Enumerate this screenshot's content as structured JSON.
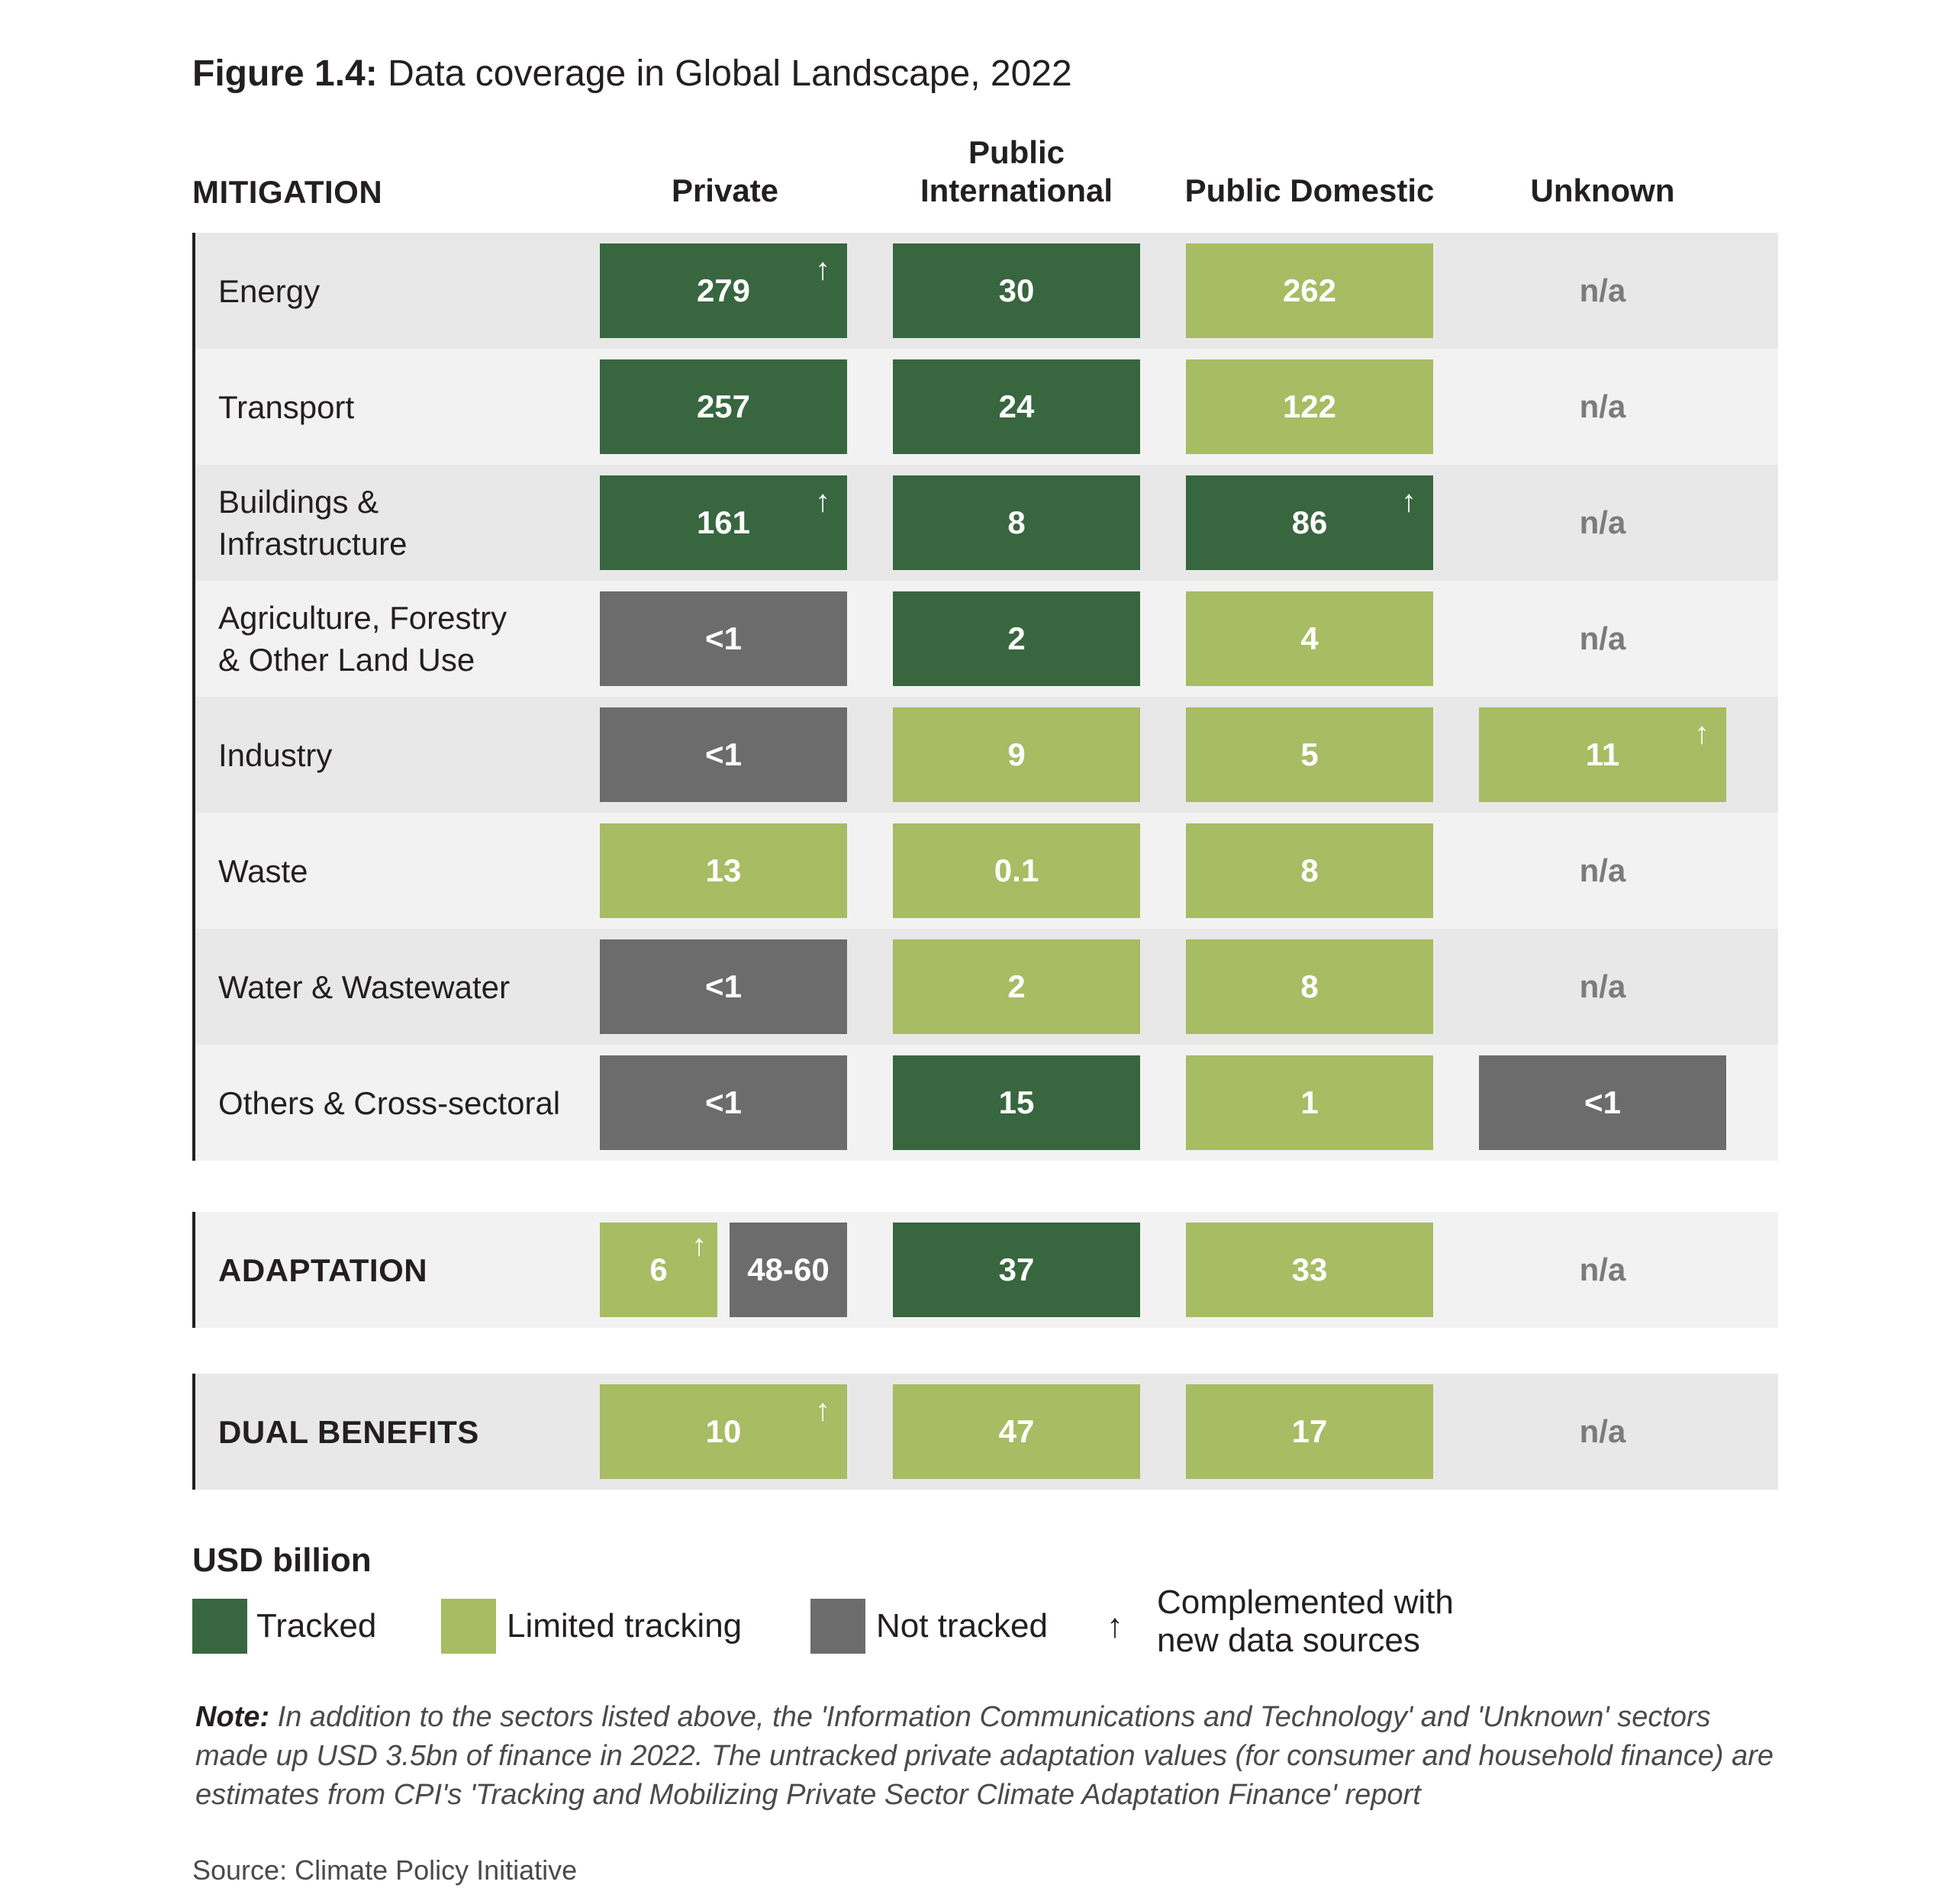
{
  "title": {
    "prefix": "Figure 1.4:",
    "text": "Data coverage in Global Landscape, 2022"
  },
  "columns": [
    "Private",
    "Public\nInternational",
    "Public Domestic",
    "Unknown"
  ],
  "colors": {
    "tracked": "#38663f",
    "limited_tracking": "#a7bc63",
    "not_tracked": "#6c6c6c",
    "na_text": "#7b7b7b"
  },
  "chart_data": {
    "type": "table",
    "title": "Data coverage in Global Landscape, 2022",
    "unit": "USD billion",
    "columns": [
      "Private",
      "Public International",
      "Public Domestic",
      "Unknown"
    ],
    "sections": [
      {
        "name": "MITIGATION",
        "rows": [
          {
            "sector": "Energy",
            "cells": [
              {
                "value": "279",
                "status": "tracked",
                "new_data": true
              },
              {
                "value": "30",
                "status": "tracked",
                "new_data": false
              },
              {
                "value": "262",
                "status": "limited",
                "new_data": false
              },
              {
                "value": "n/a",
                "status": "na",
                "new_data": false
              }
            ]
          },
          {
            "sector": "Transport",
            "cells": [
              {
                "value": "257",
                "status": "tracked",
                "new_data": false
              },
              {
                "value": "24",
                "status": "tracked",
                "new_data": false
              },
              {
                "value": "122",
                "status": "limited",
                "new_data": false
              },
              {
                "value": "n/a",
                "status": "na",
                "new_data": false
              }
            ]
          },
          {
            "sector": "Buildings &\nInfrastructure",
            "cells": [
              {
                "value": "161",
                "status": "tracked",
                "new_data": true
              },
              {
                "value": "8",
                "status": "tracked",
                "new_data": false
              },
              {
                "value": "86",
                "status": "tracked",
                "new_data": true
              },
              {
                "value": "n/a",
                "status": "na",
                "new_data": false
              }
            ]
          },
          {
            "sector": "Agriculture, Forestry\n& Other Land Use",
            "cells": [
              {
                "value": "<1",
                "status": "nottracked",
                "new_data": false
              },
              {
                "value": "2",
                "status": "tracked",
                "new_data": false
              },
              {
                "value": "4",
                "status": "limited",
                "new_data": false
              },
              {
                "value": "n/a",
                "status": "na",
                "new_data": false
              }
            ]
          },
          {
            "sector": "Industry",
            "cells": [
              {
                "value": "<1",
                "status": "nottracked",
                "new_data": false
              },
              {
                "value": "9",
                "status": "limited",
                "new_data": false
              },
              {
                "value": "5",
                "status": "limited",
                "new_data": false
              },
              {
                "value": "11",
                "status": "limited",
                "new_data": true
              }
            ]
          },
          {
            "sector": "Waste",
            "cells": [
              {
                "value": "13",
                "status": "limited",
                "new_data": false
              },
              {
                "value": "0.1",
                "status": "limited",
                "new_data": false
              },
              {
                "value": "8",
                "status": "limited",
                "new_data": false
              },
              {
                "value": "n/a",
                "status": "na",
                "new_data": false
              }
            ]
          },
          {
            "sector": "Water & Wastewater",
            "cells": [
              {
                "value": "<1",
                "status": "nottracked",
                "new_data": false
              },
              {
                "value": "2",
                "status": "limited",
                "new_data": false
              },
              {
                "value": "8",
                "status": "limited",
                "new_data": false
              },
              {
                "value": "n/a",
                "status": "na",
                "new_data": false
              }
            ]
          },
          {
            "sector": "Others & Cross-sectoral",
            "cells": [
              {
                "value": "<1",
                "status": "nottracked",
                "new_data": false
              },
              {
                "value": "15",
                "status": "tracked",
                "new_data": false
              },
              {
                "value": "1",
                "status": "limited",
                "new_data": false
              },
              {
                "value": "<1",
                "status": "nottracked",
                "new_data": false
              }
            ]
          }
        ]
      },
      {
        "name": "ADAPTATION",
        "rows": [
          {
            "sector": "ADAPTATION",
            "cells": [
              {
                "parts": [
                  {
                    "value": "6",
                    "status": "limited",
                    "new_data": true
                  },
                  {
                    "value": "48-60",
                    "status": "nottracked",
                    "new_data": false
                  }
                ]
              },
              {
                "value": "37",
                "status": "tracked",
                "new_data": false
              },
              {
                "value": "33",
                "status": "limited",
                "new_data": false
              },
              {
                "value": "n/a",
                "status": "na",
                "new_data": false
              }
            ]
          }
        ]
      },
      {
        "name": "DUAL BENEFITS",
        "rows": [
          {
            "sector": "DUAL BENEFITS",
            "cells": [
              {
                "value": "10",
                "status": "limited",
                "new_data": true
              },
              {
                "value": "47",
                "status": "limited",
                "new_data": false
              },
              {
                "value": "17",
                "status": "limited",
                "new_data": false
              },
              {
                "value": "n/a",
                "status": "na",
                "new_data": false
              }
            ]
          }
        ]
      }
    ]
  },
  "legend": {
    "unit_label": "USD billion",
    "items": [
      {
        "label": "Tracked",
        "status": "tracked"
      },
      {
        "label": "Limited tracking",
        "status": "limited"
      },
      {
        "label": "Not tracked",
        "status": "nottracked"
      }
    ],
    "arrow_symbol": "↑",
    "arrow_label": "Complemented with\nnew data sources"
  },
  "note": {
    "prefix": "Note:",
    "text": " In addition to the sectors listed above, the 'Information Communications and Technology' and 'Unknown' sectors made up USD 3.5bn of finance in 2022. The untracked private adaptation values (for consumer and household finance) are estimates from CPI's 'Tracking and Mobilizing Private Sector Climate Adaptation Finance' report"
  },
  "source": "Source: Climate Policy Initiative"
}
